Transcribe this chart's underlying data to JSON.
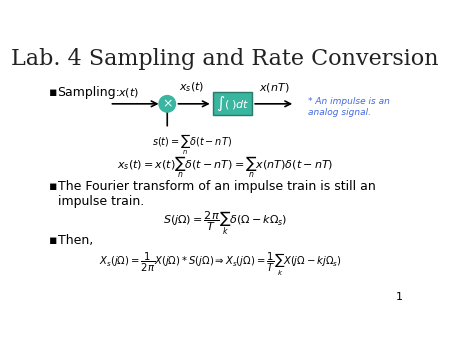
{
  "title": "Lab. 4 Sampling and Rate Conversion",
  "background_color": "#ffffff",
  "title_fontsize": 16,
  "bullet_color": "#000000",
  "teal_color": "#3aafa9",
  "green_color": "#2a9d8f",
  "blue_text_color": "#4169e1",
  "annotation_color": "#4169e1",
  "bullet1": "Sampling:",
  "bullet2": "The Fourier transform of an impulse train is still an\nimpulse train.",
  "bullet3": "Then,",
  "eq_xs": "$x_s(t) = x(t)\\sum_{n}\\delta(t-nT) = \\sum_{n}x(nT)\\delta(t-nT)$",
  "eq_S": "$S(j\\Omega) = \\dfrac{2\\pi}{T}\\sum_{k}\\delta(\\Omega - k\\Omega_s)$",
  "eq_Xs": "$X_s(j\\Omega) = \\dfrac{1}{2\\pi}X(j\\Omega)*S(j\\Omega) \\Rightarrow X_s(j\\Omega) = \\dfrac{1}{T}\\sum_{k}X(j\\Omega - kj\\Omega_s)$",
  "eq_st": "$s(t) = \\sum_{n}\\delta(t-nT)$",
  "label_xt": "$x(t)$",
  "label_xst": "$x_s(t)$",
  "label_xnt": "$x(nT)$",
  "annotation": "* An impulse is an\nanalog signal.",
  "page_number": "1"
}
